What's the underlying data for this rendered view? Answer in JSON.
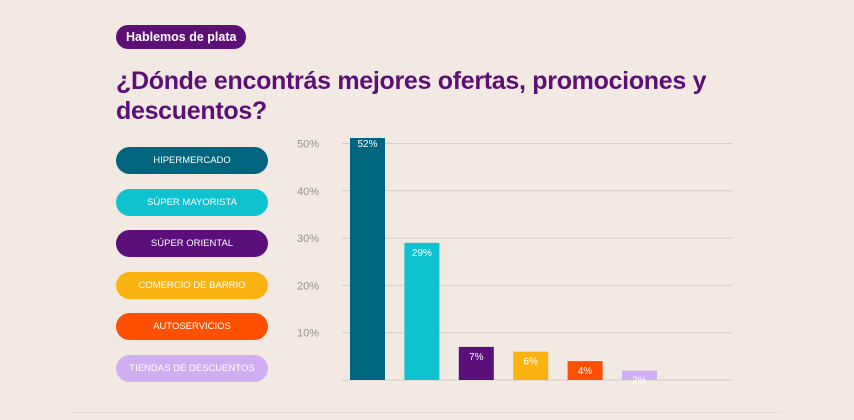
{
  "header": {
    "tag": "Hablemos de plata",
    "title": "¿Dónde encontrás mejores ofertas, promociones y descuentos?"
  },
  "colors": {
    "background": "#f2e9e3",
    "brand_purple": "#5c0f75",
    "grid": "#d8ceC8"
  },
  "chart_data": {
    "type": "bar",
    "categories": [
      "HIPERMERCADO",
      "SÚPER MAYORISTA",
      "SÚPER ORIENTAL",
      "COMERCIO DE BARRIO",
      "AUTOSERVICIOS",
      "TIENDAS DE DESCUENTOS"
    ],
    "values": [
      52,
      29,
      7,
      6,
      4,
      2
    ],
    "data_labels": [
      "52%",
      "29%",
      "7%",
      "6%",
      "4%",
      "2%"
    ],
    "colors": [
      "#00657f",
      "#0fc2cf",
      "#5a0f7a",
      "#fbb311",
      "#fe5000",
      "#d0aef2"
    ],
    "label_colors": [
      "#ffffff",
      "#ffffff",
      "#ffffff",
      "#ffffff",
      "#ffffff",
      "#ffffff"
    ],
    "legend_text_colors": [
      "#ffffff",
      "#ffffff",
      "#ffffff",
      "#ffffff",
      "#ffffff",
      "#ffffff"
    ],
    "yticks": [
      10,
      20,
      30,
      40,
      50
    ],
    "ytick_labels": [
      "10%",
      "20%",
      "30%",
      "40%",
      "50%"
    ],
    "ylim": [
      0,
      55
    ],
    "grid": true,
    "legend_position": "left"
  }
}
